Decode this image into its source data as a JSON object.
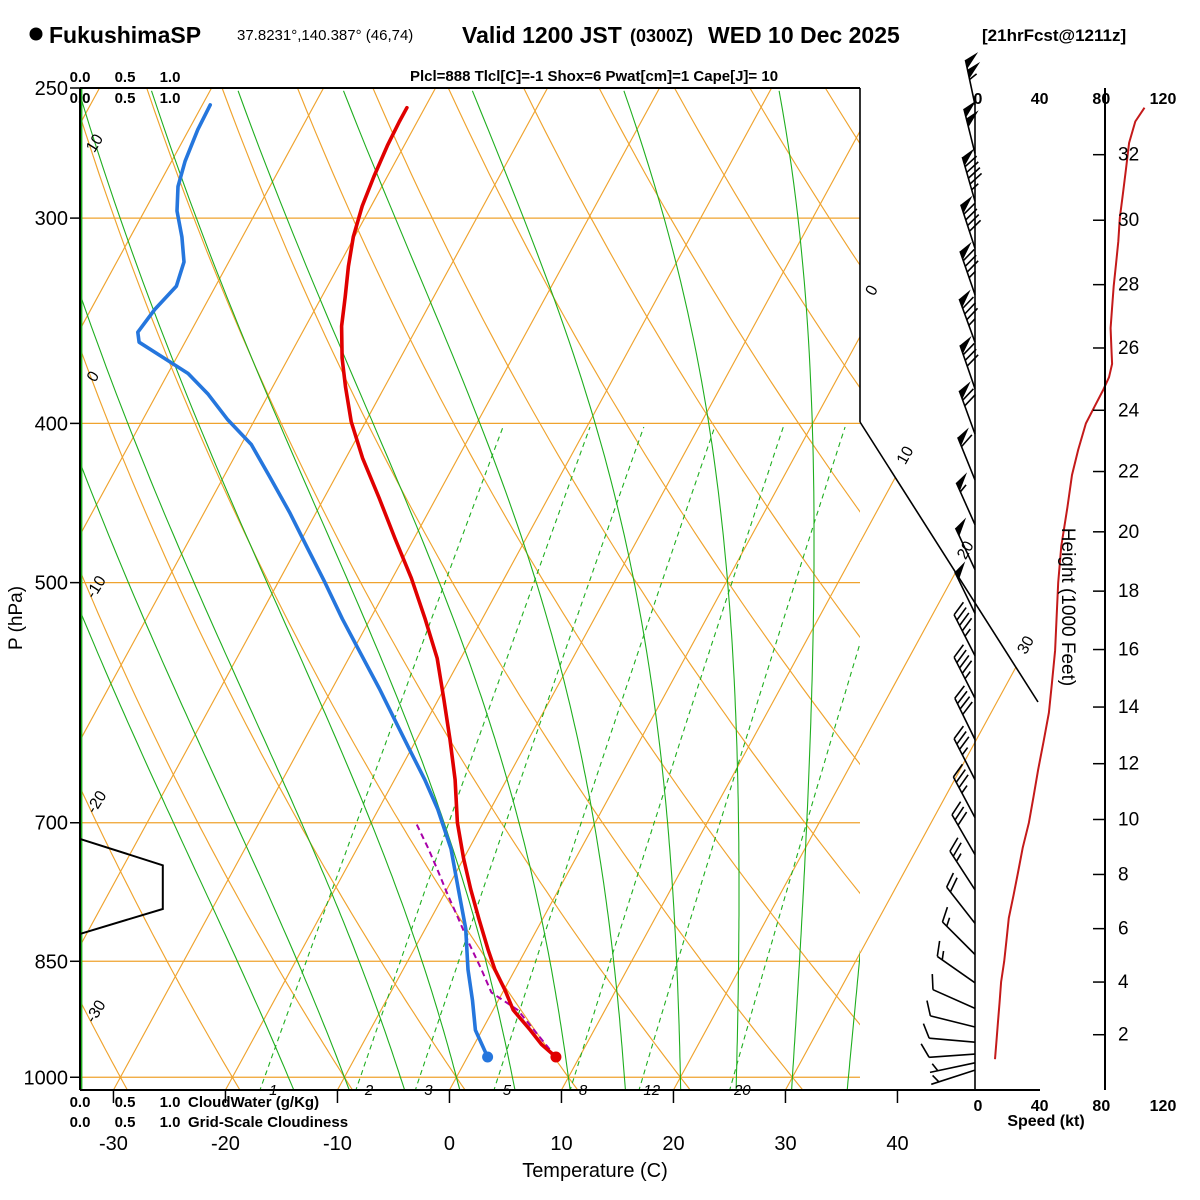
{
  "header": {
    "station": "FukushimaSP",
    "coords": "37.8231°,140.387° (46,74)",
    "valid_prefix": "Valid 1200 JST",
    "valid_zulu": "(0300Z)",
    "valid_date": "WED 10 Dec 2025",
    "forecast_tag": "[21hrFcst@1211z]",
    "params": "Plcl=888 Tlcl[C]=-1 Shox=6 Pwat[cm]=1 Cape[J]= 10"
  },
  "cloud_scale": {
    "ticks": [
      "0.0",
      "0.5",
      "1.0"
    ],
    "cloudwater_label": "CloudWater (g/Kg)",
    "cloudiness_label": "Grid-Scale Cloudiness"
  },
  "colors": {
    "grid_orange": "#EFA32E",
    "green": "#1FAE1F",
    "temp_red": "#E00000",
    "dew_blue": "#2576DD",
    "speed_line": "#C41A1A",
    "speed_text": "#E80000",
    "magenta": "#A800A8",
    "black": "#000000"
  },
  "chart_data": {
    "type": "line",
    "subtype": "skew-t-log-p-sounding",
    "axes": {
      "pressure_label": "P (hPa)",
      "pressure_ticks": [
        250,
        300,
        400,
        500,
        700,
        850,
        1000
      ],
      "temp_label": "Temperature (C)",
      "temp_ticks": [
        -30,
        -20,
        -10,
        0,
        10,
        20,
        30,
        40
      ],
      "height_label": "Height (1000 Feet)",
      "height_ticks_kft": [
        2,
        4,
        6,
        8,
        10,
        12,
        14,
        16,
        18,
        20,
        22,
        24,
        26,
        28,
        30,
        32
      ],
      "speed_label": "Speed (kt)",
      "speed_ticks": [
        0,
        40,
        80,
        120
      ],
      "speed_max": 120
    },
    "isotherms_c": {
      "start": -80,
      "end": 40,
      "step": 10
    },
    "isotherm_right_labels": [
      0,
      10,
      20,
      30
    ],
    "dry_adiabats_c": {
      "start": -30,
      "end": 120,
      "step": 10
    },
    "dry_adiabat_labels": [
      10,
      0,
      -10,
      -20,
      -30
    ],
    "moist_adiabats_c": [
      -15,
      -10,
      -5,
      0,
      5,
      10,
      15,
      20,
      25,
      30,
      35
    ],
    "mixing_ratio_gkg": [
      1,
      2,
      3,
      5,
      8,
      12,
      20
    ],
    "temperature_profile_c": [
      [
        972,
        7.9
      ],
      [
        955,
        6.0
      ],
      [
        936,
        4.3
      ],
      [
        910,
        1.8
      ],
      [
        885,
        0.1
      ],
      [
        860,
        -1.8
      ],
      [
        836,
        -3.4
      ],
      [
        801,
        -5.7
      ],
      [
        768,
        -7.9
      ],
      [
        736,
        -10.0
      ],
      [
        700,
        -12.3
      ],
      [
        659,
        -14.6
      ],
      [
        623,
        -17.0
      ],
      [
        589,
        -19.5
      ],
      [
        556,
        -22.1
      ],
      [
        526,
        -25.1
      ],
      [
        497,
        -28.3
      ],
      [
        470,
        -31.7
      ],
      [
        444,
        -35.1
      ],
      [
        420,
        -38.5
      ],
      [
        399,
        -41.3
      ],
      [
        380,
        -43.5
      ],
      [
        365,
        -45.2
      ],
      [
        349,
        -46.8
      ],
      [
        335,
        -47.9
      ],
      [
        321,
        -49.1
      ],
      [
        308,
        -50.1
      ],
      [
        295,
        -50.8
      ],
      [
        283,
        -51.2
      ],
      [
        271,
        -51.5
      ],
      [
        262,
        -51.6
      ],
      [
        257,
        -51.6
      ]
    ],
    "dewpoint_profile_c": [
      [
        972,
        1.8
      ],
      [
        936,
        -0.6
      ],
      [
        898,
        -2.3
      ],
      [
        860,
        -4.2
      ],
      [
        812,
        -6.4
      ],
      [
        768,
        -9.0
      ],
      [
        726,
        -11.6
      ],
      [
        687,
        -14.7
      ],
      [
        659,
        -17.3
      ],
      [
        632,
        -20.1
      ],
      [
        605,
        -23.0
      ],
      [
        580,
        -25.8
      ],
      [
        552,
        -29.2
      ],
      [
        526,
        -32.5
      ],
      [
        500,
        -35.8
      ],
      [
        476,
        -39.1
      ],
      [
        453,
        -42.4
      ],
      [
        431,
        -45.9
      ],
      [
        412,
        -49.1
      ],
      [
        398,
        -52.4
      ],
      [
        384,
        -55.4
      ],
      [
        373,
        -58.2
      ],
      [
        365,
        -61.1
      ],
      [
        357,
        -64.1
      ],
      [
        352,
        -64.7
      ],
      [
        341,
        -64.3
      ],
      [
        330,
        -63.5
      ],
      [
        319,
        -64.0
      ],
      [
        308,
        -65.4
      ],
      [
        297,
        -67.1
      ],
      [
        287,
        -68.2
      ],
      [
        277,
        -68.8
      ],
      [
        265,
        -69.2
      ],
      [
        256,
        -69.3
      ]
    ],
    "parcel_path_c": [
      [
        972,
        7.9
      ],
      [
        940,
        5.0
      ],
      [
        910,
        2.2
      ],
      [
        888,
        -1.0
      ],
      [
        860,
        -3.0
      ],
      [
        830,
        -5.3
      ],
      [
        800,
        -7.6
      ],
      [
        775,
        -9.6
      ],
      [
        750,
        -11.6
      ],
      [
        725,
        -13.7
      ],
      [
        700,
        -16.0
      ]
    ],
    "surface_points": {
      "temp": {
        "p": 972,
        "t": 7.9
      },
      "dew": {
        "p": 972,
        "t": 1.8
      }
    },
    "cloudiness_profile": [
      [
        716,
        0.0
      ],
      [
        743,
        0.92
      ],
      [
        790,
        0.92
      ],
      [
        818,
        0.0
      ]
    ],
    "cloudwater_profile_max": 0.0,
    "wind_speed_profile_kt": [
      [
        975,
        11
      ],
      [
        950,
        12
      ],
      [
        925,
        13
      ],
      [
        900,
        14
      ],
      [
        875,
        15
      ],
      [
        850,
        17
      ],
      [
        825,
        18.5
      ],
      [
        800,
        20
      ],
      [
        775,
        23
      ],
      [
        750,
        26
      ],
      [
        725,
        29
      ],
      [
        700,
        33
      ],
      [
        675,
        36
      ],
      [
        650,
        39
      ],
      [
        625,
        42.5
      ],
      [
        600,
        46
      ],
      [
        575,
        48
      ],
      [
        550,
        50
      ],
      [
        525,
        51
      ],
      [
        500,
        52
      ],
      [
        475,
        54
      ],
      [
        450,
        58
      ],
      [
        430,
        61
      ],
      [
        415,
        65
      ],
      [
        400,
        70
      ],
      [
        390,
        76
      ],
      [
        382,
        81
      ],
      [
        375,
        85
      ],
      [
        368,
        87
      ],
      [
        360,
        86.5
      ],
      [
        350,
        86
      ],
      [
        340,
        87
      ],
      [
        330,
        88
      ],
      [
        320,
        89.5
      ],
      [
        310,
        91
      ],
      [
        300,
        92
      ],
      [
        290,
        94
      ],
      [
        280,
        96
      ],
      [
        270,
        98
      ],
      [
        262,
        102
      ],
      [
        257,
        108
      ]
    ],
    "wind_barbs": [
      {
        "p": 256,
        "a": 12,
        "pen": 2,
        "f": 0,
        "h": 1
      },
      {
        "p": 274,
        "a": 14,
        "pen": 2,
        "f": 0,
        "h": 0
      },
      {
        "p": 293,
        "a": 16,
        "pen": 1,
        "f": 4,
        "h": 1
      },
      {
        "p": 313,
        "a": 18,
        "pen": 1,
        "f": 4,
        "h": 0
      },
      {
        "p": 334,
        "a": 19,
        "pen": 1,
        "f": 3,
        "h": 1
      },
      {
        "p": 357,
        "a": 20,
        "pen": 1,
        "f": 3,
        "h": 1
      },
      {
        "p": 381,
        "a": 19,
        "pen": 1,
        "f": 3,
        "h": 0
      },
      {
        "p": 406,
        "a": 20,
        "pen": 1,
        "f": 2,
        "h": 0
      },
      {
        "p": 433,
        "a": 22,
        "pen": 1,
        "f": 1,
        "h": 0
      },
      {
        "p": 461,
        "a": 24,
        "pen": 1,
        "f": 0,
        "h": 1
      },
      {
        "p": 491,
        "a": 25,
        "pen": 1,
        "f": 0,
        "h": 0
      },
      {
        "p": 522,
        "a": 26,
        "pen": 1,
        "f": 0,
        "h": 0
      },
      {
        "p": 554,
        "a": 27,
        "pen": 0,
        "f": 4,
        "h": 1
      },
      {
        "p": 588,
        "a": 27,
        "pen": 0,
        "f": 4,
        "h": 1
      },
      {
        "p": 623,
        "a": 26,
        "pen": 0,
        "f": 4,
        "h": 0
      },
      {
        "p": 659,
        "a": 27,
        "pen": 0,
        "f": 3,
        "h": 1
      },
      {
        "p": 695,
        "a": 28,
        "pen": 0,
        "f": 3,
        "h": 1
      },
      {
        "p": 732,
        "a": 30,
        "pen": 0,
        "f": 3,
        "h": 0
      },
      {
        "p": 769,
        "a": 33,
        "pen": 0,
        "f": 2,
        "h": 1
      },
      {
        "p": 806,
        "a": 38,
        "pen": 0,
        "f": 2,
        "h": 0
      },
      {
        "p": 842,
        "a": 45,
        "pen": 0,
        "f": 1,
        "h": 1
      },
      {
        "p": 876,
        "a": 55,
        "pen": 0,
        "f": 1,
        "h": 1
      },
      {
        "p": 908,
        "a": 66,
        "pen": 0,
        "f": 1,
        "h": 0
      },
      {
        "p": 932,
        "a": 76,
        "pen": 0,
        "f": 1,
        "h": 0
      },
      {
        "p": 952,
        "a": 85,
        "pen": 0,
        "f": 1,
        "h": 0
      },
      {
        "p": 968,
        "a": 94,
        "pen": 0,
        "f": 1,
        "h": 0
      },
      {
        "p": 980,
        "a": 102,
        "pen": 0,
        "f": 0,
        "h": 1
      },
      {
        "p": 990,
        "a": 108,
        "pen": 0,
        "f": 0,
        "h": 1
      }
    ]
  }
}
